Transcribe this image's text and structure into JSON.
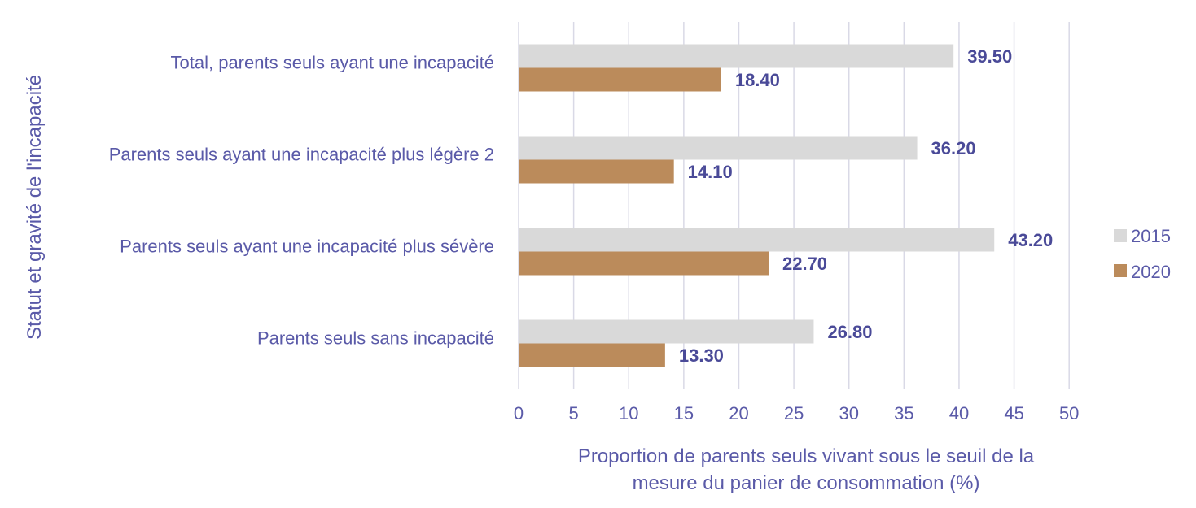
{
  "chart_data": {
    "type": "bar",
    "orientation": "horizontal",
    "categories": [
      "Total, parents seuls ayant une incapacité",
      "Parents seuls ayant une incapacité plus légère 2",
      "Parents seuls ayant une incapacité plus sévère",
      "Parents seuls sans incapacité"
    ],
    "series": [
      {
        "name": "2015",
        "color": "#d9d9d9",
        "values": [
          39.5,
          36.2,
          43.2,
          26.8
        ],
        "labels": [
          "39.50",
          "36.20",
          "43.20",
          "26.80"
        ]
      },
      {
        "name": "2020",
        "color": "#bb8b5b",
        "values": [
          18.4,
          14.1,
          22.7,
          13.3
        ],
        "labels": [
          "18.40",
          "14.10",
          "22.70",
          "13.30"
        ]
      }
    ],
    "x_ticks": [
      "0",
      "5",
      "10",
      "15",
      "20",
      "25",
      "30",
      "35",
      "40",
      "45",
      "50"
    ],
    "xlim": [
      0,
      52.5
    ],
    "xlabel": [
      "Proportion de parents seuls vivant sous le seuil de la",
      "mesure du panier de consommation (%)"
    ],
    "ylabel": "Statut et gravité de l'incapacité",
    "grid": true,
    "legend_position": "right"
  }
}
